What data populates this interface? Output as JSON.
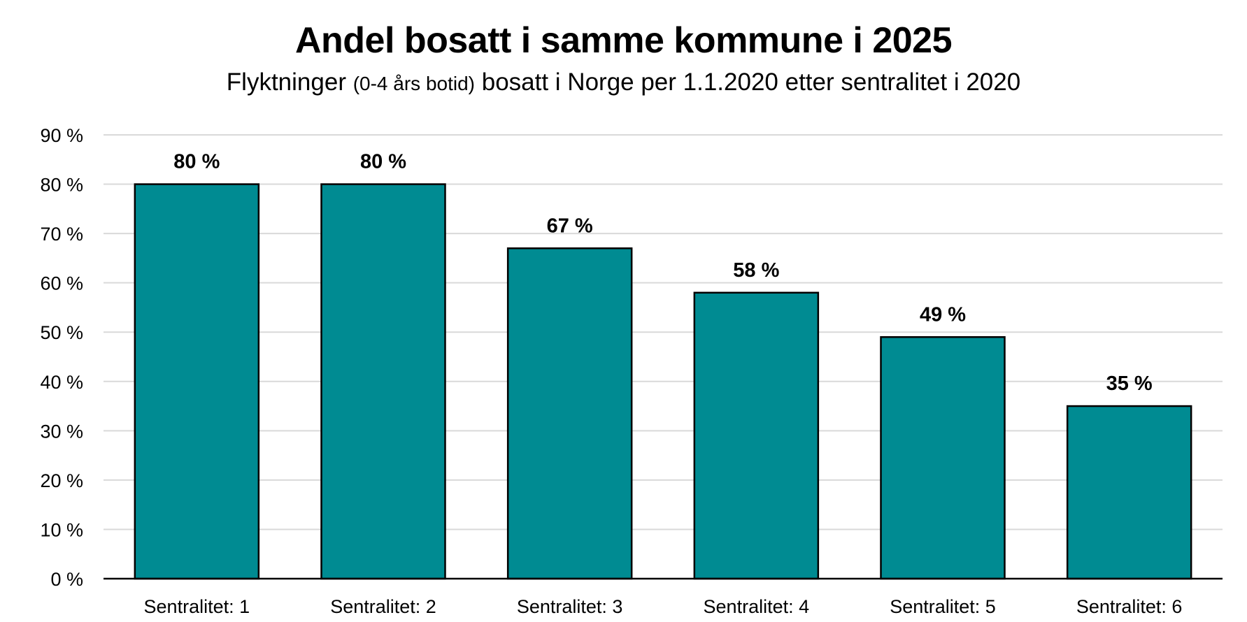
{
  "chart_data": {
    "type": "bar",
    "title": "Andel bosatt i samme kommune i 2025",
    "subtitle": {
      "before": "Flyktninger ",
      "small": "(0-4 års botid)",
      "after": " bosatt i Norge per 1.1.2020 etter sentralitet i 2020"
    },
    "categories": [
      "Sentralitet: 1",
      "Sentralitet: 2",
      "Sentralitet: 3",
      "Sentralitet: 4",
      "Sentralitet: 5",
      "Sentralitet: 6"
    ],
    "values": [
      80,
      80,
      67,
      58,
      49,
      35
    ],
    "data_labels": [
      "80 %",
      "80 %",
      "67 %",
      "58 %",
      "49 %",
      "35 %"
    ],
    "yticks": [
      0,
      10,
      20,
      30,
      40,
      50,
      60,
      70,
      80,
      90
    ],
    "ytick_labels": [
      "0 %",
      "10 %",
      "20 %",
      "30 %",
      "40 %",
      "50 %",
      "60 %",
      "70 %",
      "80 %",
      "90 %"
    ],
    "ylim": [
      0,
      90
    ],
    "xlabel": "",
    "ylabel": "",
    "grid": true,
    "legend": "none",
    "bar_color": "#008B92",
    "bar_edge_color": "#000000",
    "grid_color": "#D9D9D9"
  }
}
